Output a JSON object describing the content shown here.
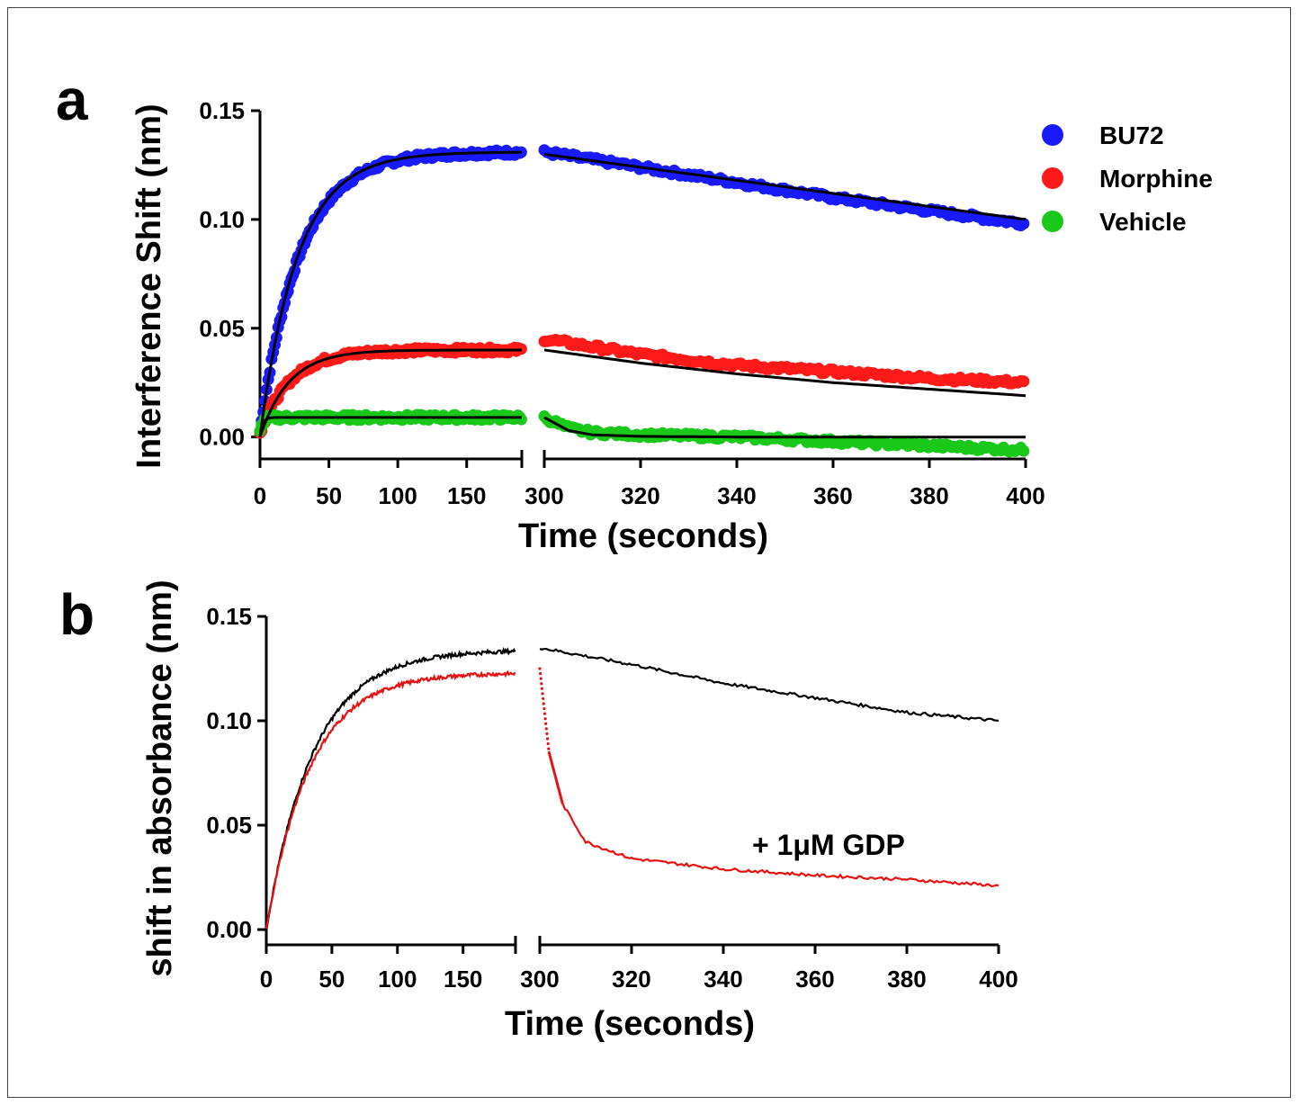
{
  "panels": {
    "a": {
      "letter": "a",
      "ylabel": "Interference Shift (nm)",
      "xlabel": "Time (seconds)",
      "yticks": [
        "0.00",
        "0.05",
        "0.10",
        "0.15"
      ],
      "xticks_left": [
        "0",
        "50",
        "100",
        "150"
      ],
      "xticks_right": [
        "300",
        "320",
        "340",
        "360",
        "380",
        "400"
      ],
      "legend": [
        {
          "label": "BU72",
          "color": "#1a1aff"
        },
        {
          "label": "Morphine",
          "color": "#ff1a1a"
        },
        {
          "label": "Vehicle",
          "color": "#1ac81a"
        }
      ]
    },
    "b": {
      "letter": "b",
      "ylabel": "shift in absorbance (nm)",
      "xlabel": "Time (seconds)",
      "yticks": [
        "0.00",
        "0.05",
        "0.10",
        "0.15"
      ],
      "xticks_left": [
        "0",
        "50",
        "100",
        "150"
      ],
      "xticks_right": [
        "300",
        "320",
        "340",
        "360",
        "380",
        "400"
      ],
      "annotation": "+ 1μM GDP",
      "annotation_color": "#e81010"
    }
  },
  "chart_data": [
    {
      "type": "scatter",
      "panel": "a",
      "x_segments": [
        [
          0,
          190
        ],
        [
          300,
          400
        ]
      ],
      "ylim": [
        -0.005,
        0.15
      ],
      "series": [
        {
          "name": "BU72",
          "color": "#1a1aff",
          "association": {
            "y_plateau": 0.131,
            "k": 0.035
          },
          "dissociation": {
            "x": [
              300,
              320,
              340,
              360,
              380,
              400
            ],
            "y": [
              0.131,
              0.124,
              0.117,
              0.11,
              0.104,
              0.098
            ]
          },
          "fit_dissociation": {
            "x": [
              300,
              400
            ],
            "y": [
              0.13,
              0.1
            ]
          }
        },
        {
          "name": "Morphine",
          "color": "#ff1a1a",
          "association": {
            "y_plateau": 0.04,
            "k": 0.045
          },
          "dissociation": {
            "x": [
              300,
              320,
              340,
              360,
              380,
              400
            ],
            "y": [
              0.045,
              0.038,
              0.033,
              0.03,
              0.027,
              0.025
            ]
          },
          "fit_dissociation": {
            "x": [
              300,
              320,
              340,
              360,
              380,
              400
            ],
            "y": [
              0.04,
              0.034,
              0.029,
              0.025,
              0.022,
              0.019
            ]
          }
        },
        {
          "name": "Vehicle",
          "color": "#1ac81a",
          "association": {
            "y_plateau": 0.009,
            "k": 0.5
          },
          "dissociation": {
            "x": [
              300,
              305,
              310,
              320,
              340,
              360,
              380,
              400
            ],
            "y": [
              0.009,
              0.004,
              0.002,
              0.001,
              0.0,
              -0.002,
              -0.004,
              -0.006
            ]
          },
          "fit_dissociation": {
            "x": [
              300,
              305,
              310,
              320,
              340,
              360,
              380,
              400
            ],
            "y": [
              0.009,
              0.003,
              0.001,
              0.0003,
              0.0,
              0.0,
              0.0,
              0.0
            ]
          }
        }
      ]
    },
    {
      "type": "line",
      "panel": "b",
      "x_segments": [
        [
          0,
          190
        ],
        [
          300,
          400
        ]
      ],
      "ylim": [
        0,
        0.15
      ],
      "series": [
        {
          "color": "#000000",
          "association": {
            "y_plateau": 0.134,
            "k": 0.028
          },
          "dissociation": {
            "x": [
              300,
              320,
              340,
              360,
              380,
              400
            ],
            "y": [
              0.135,
              0.127,
              0.118,
              0.111,
              0.104,
              0.1
            ]
          }
        },
        {
          "color": "#e81010",
          "association": {
            "y_plateau": 0.123,
            "k": 0.03
          },
          "dissociation": {
            "x": [
              300,
              302,
              305,
              310,
              320,
              340,
              360,
              380,
              400
            ],
            "y": [
              0.125,
              0.085,
              0.06,
              0.042,
              0.034,
              0.029,
              0.026,
              0.024,
              0.021
            ]
          }
        }
      ]
    }
  ]
}
